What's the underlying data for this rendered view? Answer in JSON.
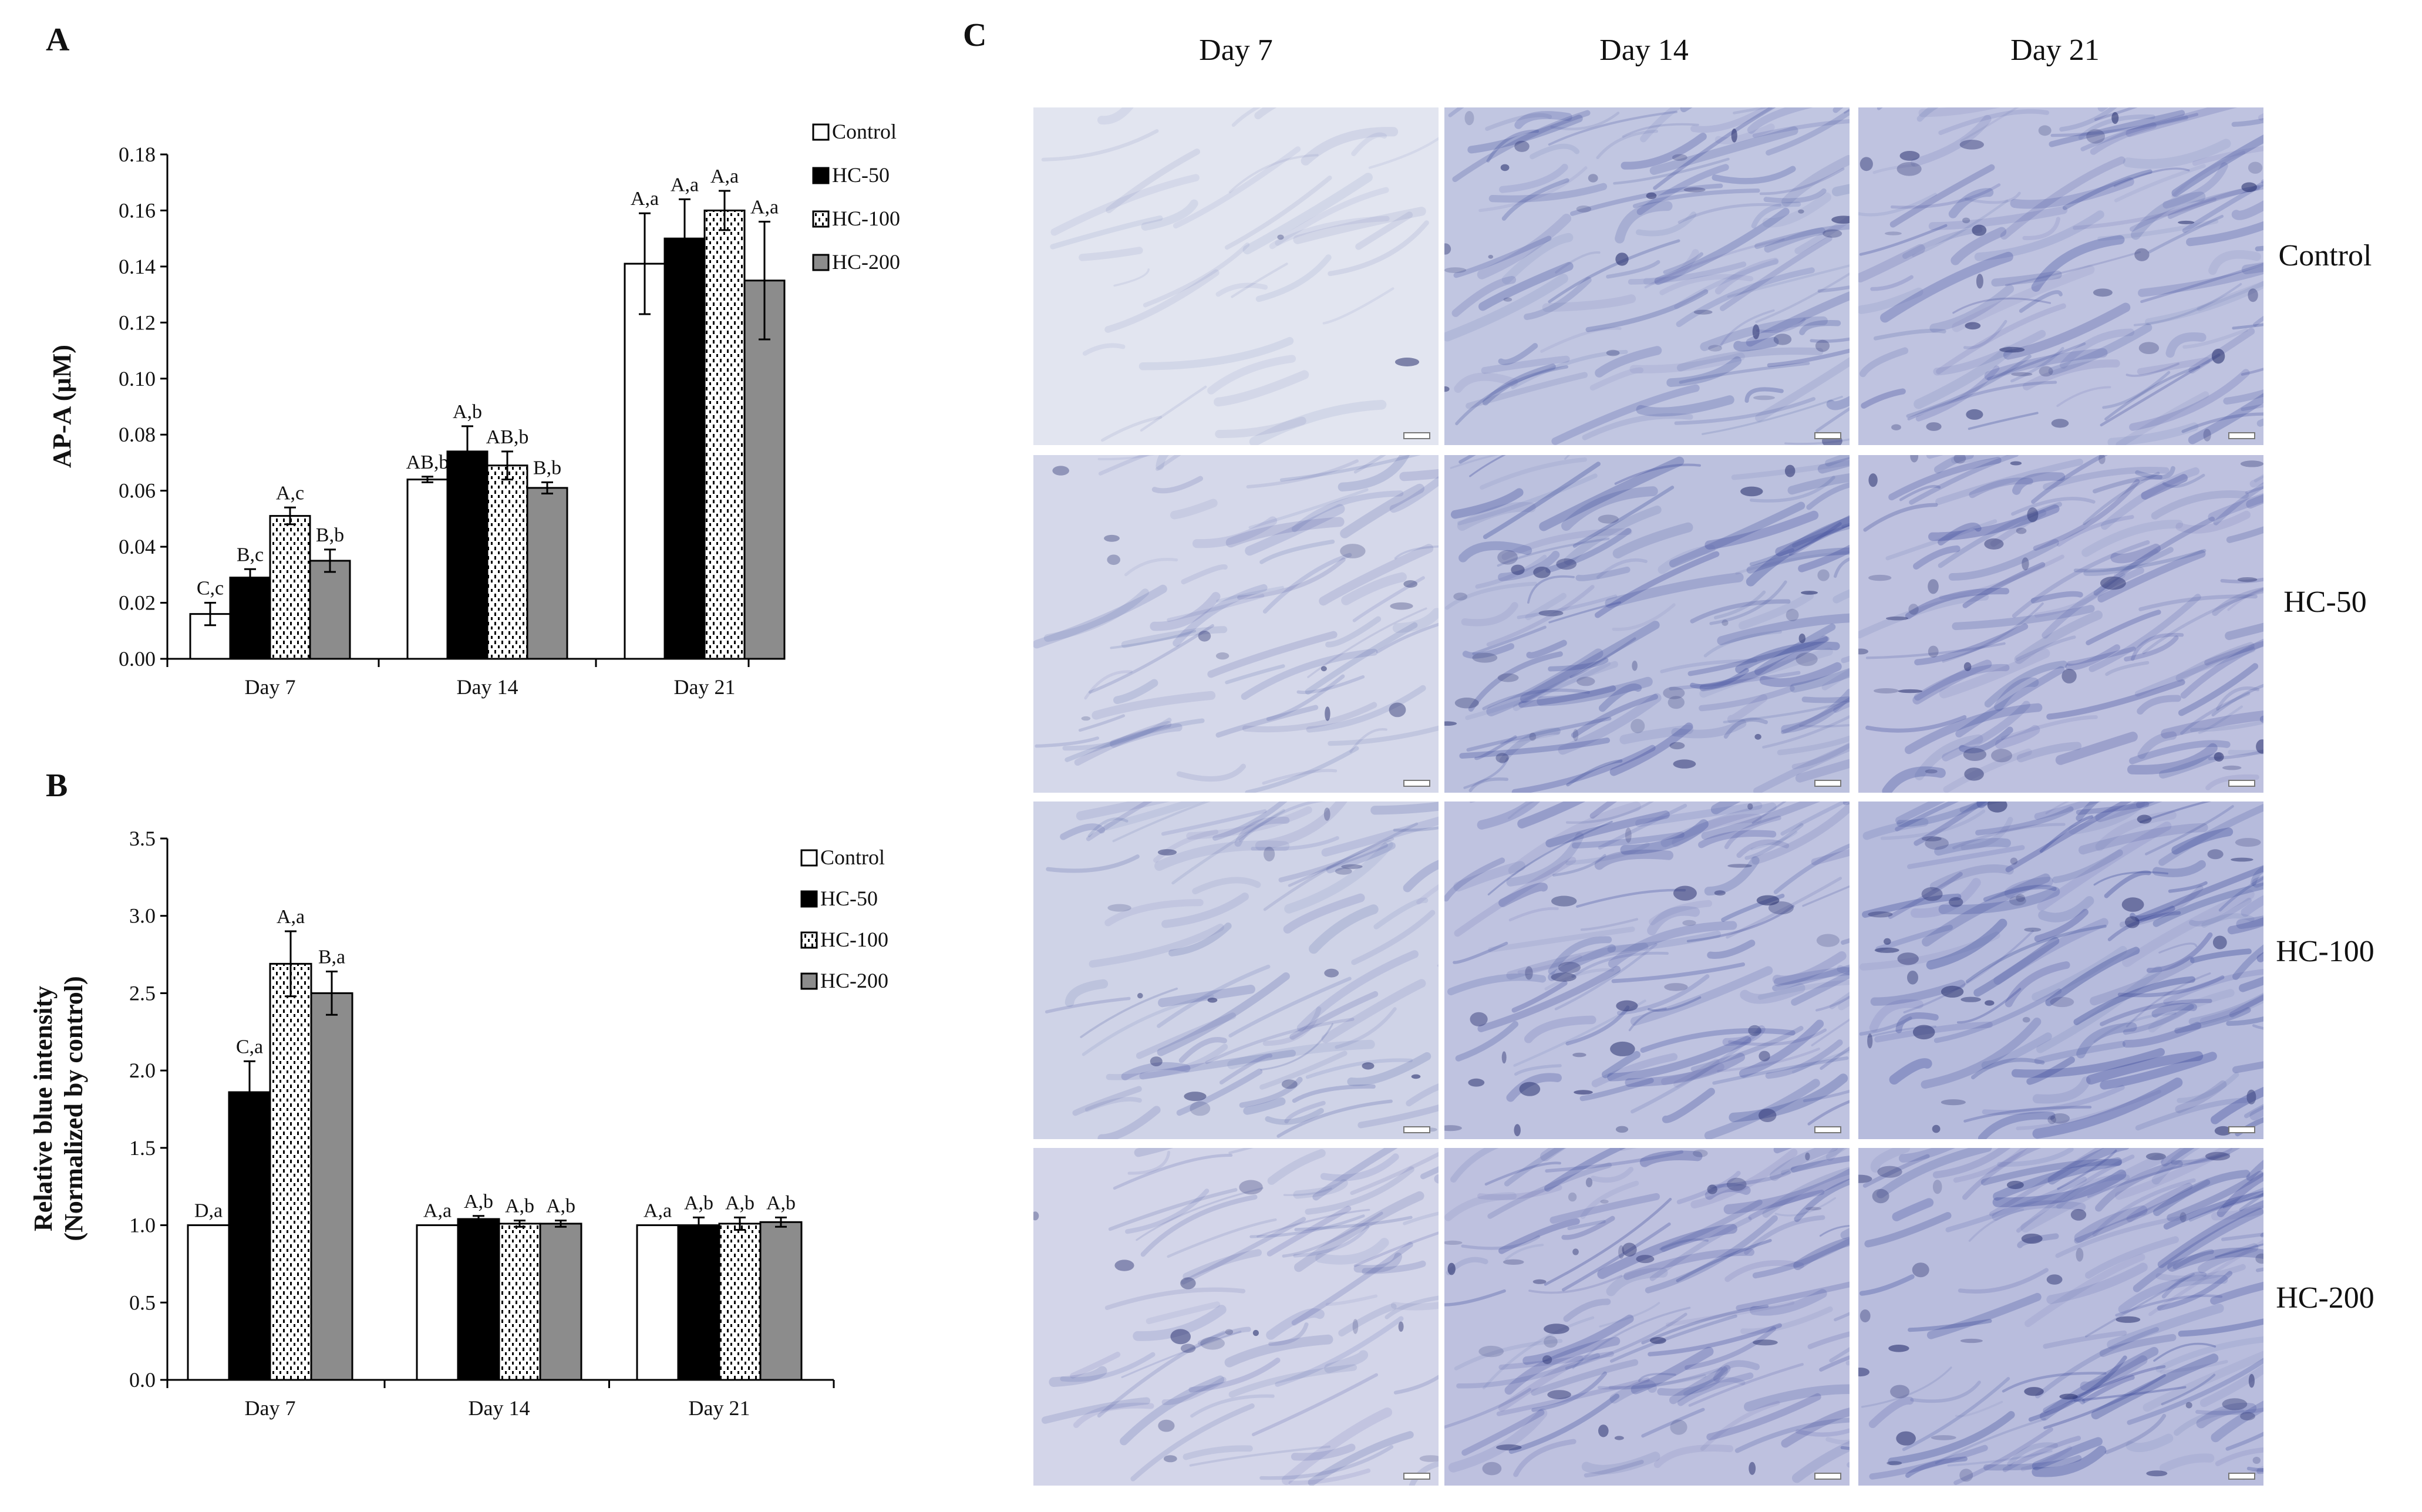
{
  "panels": {
    "a_letter": "A",
    "b_letter": "B",
    "c_letter": "C"
  },
  "colors": {
    "control_fill": "#ffffff",
    "hc50_fill": "#000000",
    "hc100_fill": "#ffffff",
    "hc100_dots": "#000000",
    "hc200_fill": "#8c8c8c",
    "stain_light": "#e6e8f2",
    "stain_dark": "#3c4a9a"
  },
  "chart_data": [
    {
      "id": "A",
      "type": "bar",
      "ylabel": "AP-A (µM)",
      "xlabel": "",
      "ylim": [
        0,
        0.18
      ],
      "yticks": [
        0.0,
        0.02,
        0.04,
        0.06,
        0.08,
        0.1,
        0.12,
        0.14,
        0.16,
        0.18
      ],
      "ytick_labels": [
        "0.00",
        "0.02",
        "0.04",
        "0.06",
        "0.08",
        "0.10",
        "0.12",
        "0.14",
        "0.16",
        "0.18"
      ],
      "categories": [
        "Day 7",
        "Day 14",
        "Day 21"
      ],
      "legend_position": "top-right",
      "series": [
        {
          "name": "Control",
          "pattern": "white",
          "values": [
            0.016,
            0.064,
            0.141
          ],
          "errors": [
            0.004,
            0.001,
            0.018
          ],
          "labels": [
            "C,c",
            "AB,b",
            "A,a"
          ]
        },
        {
          "name": "HC-50",
          "pattern": "black",
          "values": [
            0.029,
            0.074,
            0.15
          ],
          "errors": [
            0.003,
            0.009,
            0.014
          ],
          "labels": [
            "B,c",
            "A,b",
            "A,a"
          ]
        },
        {
          "name": "HC-100",
          "pattern": "dotted",
          "values": [
            0.051,
            0.069,
            0.16
          ],
          "errors": [
            0.003,
            0.005,
            0.007
          ],
          "labels": [
            "A,c",
            "AB,b",
            "A,a"
          ]
        },
        {
          "name": "HC-200",
          "pattern": "grey",
          "values": [
            0.035,
            0.061,
            0.135
          ],
          "errors": [
            0.004,
            0.002,
            0.021
          ],
          "labels": [
            "B,b",
            "B,b",
            "A,a"
          ]
        }
      ]
    },
    {
      "id": "B",
      "type": "bar",
      "ylabel_lines": [
        "Relative blue intensity",
        "(Normalized by control)"
      ],
      "xlabel": "",
      "ylim": [
        0,
        3.5
      ],
      "yticks": [
        0.0,
        0.5,
        1.0,
        1.5,
        2.0,
        2.5,
        3.0,
        3.5
      ],
      "ytick_labels": [
        "0.0",
        "0.5",
        "1.0",
        "1.5",
        "2.0",
        "2.5",
        "3.0",
        "3.5"
      ],
      "categories": [
        "Day 7",
        "Day 14",
        "Day 21"
      ],
      "legend_position": "top-right",
      "series": [
        {
          "name": "Control",
          "pattern": "white",
          "values": [
            1.0,
            1.0,
            1.0
          ],
          "errors": [
            0,
            0,
            0
          ],
          "labels": [
            "D,a",
            "A,a",
            "A,a"
          ]
        },
        {
          "name": "HC-50",
          "pattern": "black",
          "values": [
            1.86,
            1.04,
            1.0
          ],
          "errors": [
            0.2,
            0.02,
            0.05
          ],
          "labels": [
            "C,a",
            "A,b",
            "A,b"
          ]
        },
        {
          "name": "HC-100",
          "pattern": "dotted",
          "values": [
            2.69,
            1.01,
            1.01
          ],
          "errors": [
            0.21,
            0.02,
            0.04
          ],
          "labels": [
            "A,a",
            "A,b",
            "A,b"
          ]
        },
        {
          "name": "HC-200",
          "pattern": "grey",
          "values": [
            2.5,
            1.01,
            1.02
          ],
          "errors": [
            0.14,
            0.02,
            0.03
          ],
          "labels": [
            "B,a",
            "A,b",
            "A,b"
          ]
        }
      ]
    }
  ],
  "micrographs": {
    "columns": [
      "Day 7",
      "Day 14",
      "Day 21"
    ],
    "rows": [
      "Control",
      "HC-50",
      "HC-100",
      "HC-200"
    ],
    "stain_intensity": [
      [
        0.05,
        0.65,
        0.7
      ],
      [
        0.3,
        0.75,
        0.72
      ],
      [
        0.4,
        0.7,
        0.85
      ],
      [
        0.35,
        0.72,
        0.8
      ]
    ]
  }
}
